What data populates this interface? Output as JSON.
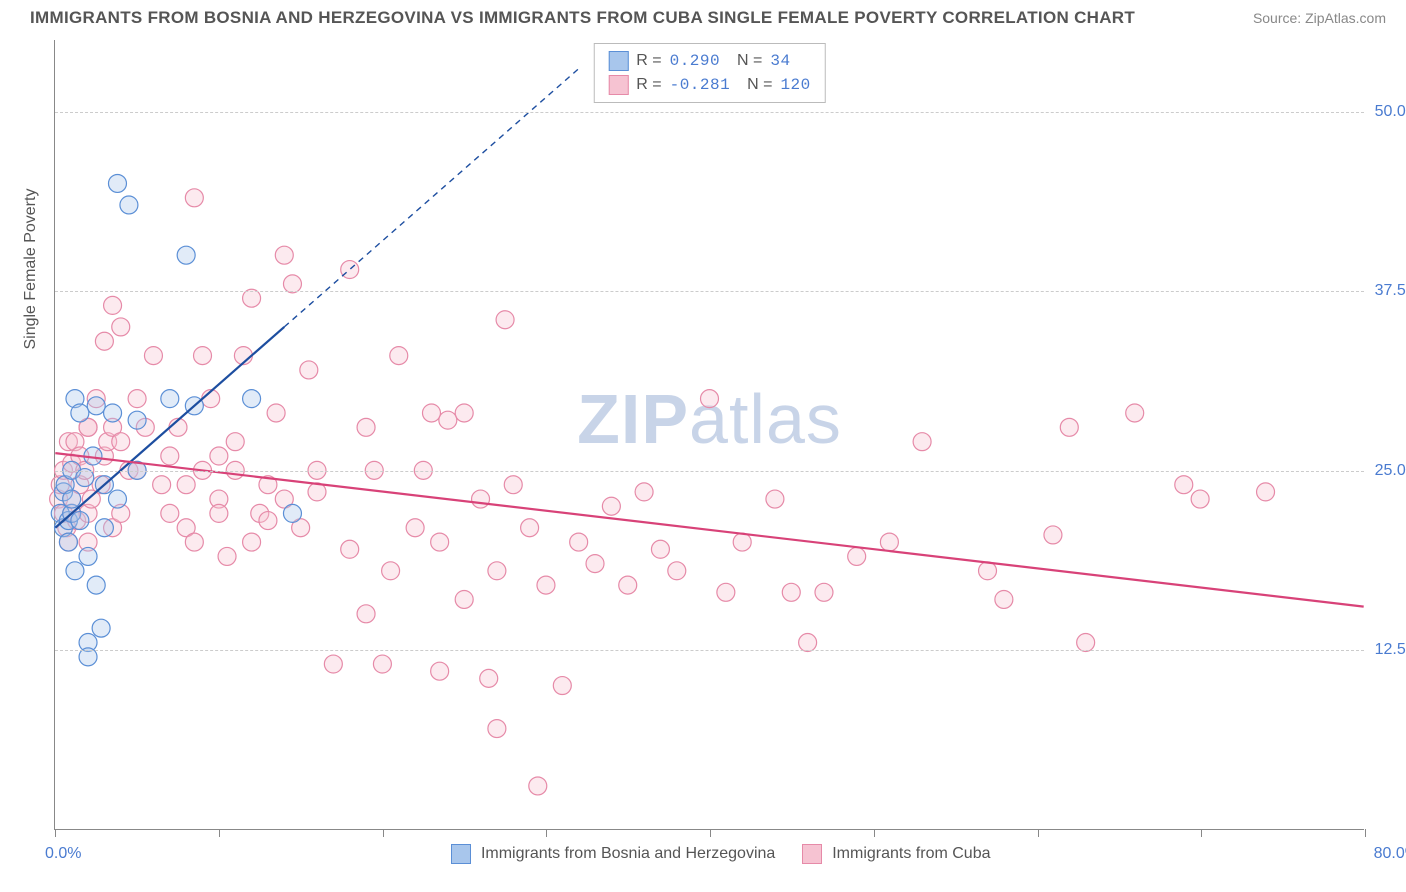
{
  "title": "IMMIGRANTS FROM BOSNIA AND HERZEGOVINA VS IMMIGRANTS FROM CUBA SINGLE FEMALE POVERTY CORRELATION CHART",
  "source": "Source: ZipAtlas.com",
  "watermark_bold": "ZIP",
  "watermark_light": "atlas",
  "yaxis_title": "Single Female Poverty",
  "chart": {
    "type": "scatter",
    "background_color": "#ffffff",
    "grid_color": "#cccccc",
    "grid_dash": "4,4",
    "axis_color": "#888888",
    "xlim": [
      0,
      80
    ],
    "ylim": [
      0,
      55
    ],
    "x_ticks": [
      0,
      10,
      20,
      30,
      40,
      50,
      60,
      70,
      80
    ],
    "x_tick_labels_visible": {
      "0": "0.0%",
      "80": "80.0%"
    },
    "y_ticks": [
      12.5,
      25.0,
      37.5,
      50.0
    ],
    "y_tick_labels": [
      "12.5%",
      "25.0%",
      "37.5%",
      "50.0%"
    ],
    "marker_radius": 9,
    "marker_fill_opacity": 0.35,
    "marker_stroke_width": 1.2,
    "line_width_solid": 2.2,
    "line_width_dash": 1.4
  },
  "series": [
    {
      "name": "Immigrants from Bosnia and Herzegovina",
      "color_fill": "#a8c6ec",
      "color_stroke": "#5b8fd6",
      "line_color": "#1d4ea0",
      "stats": {
        "R": "0.290",
        "N": "34"
      },
      "trend_solid": {
        "x1": 0,
        "y1": 21,
        "x2": 14,
        "y2": 35
      },
      "trend_dash": {
        "x1": 14,
        "y1": 35,
        "x2": 32,
        "y2": 53
      },
      "points": [
        [
          0.3,
          22
        ],
        [
          0.5,
          23.5
        ],
        [
          0.5,
          21
        ],
        [
          0.6,
          24
        ],
        [
          0.8,
          20
        ],
        [
          0.8,
          21.5
        ],
        [
          1,
          22
        ],
        [
          1,
          23
        ],
        [
          1,
          25
        ],
        [
          1.2,
          18
        ],
        [
          1.2,
          30
        ],
        [
          1.5,
          21.5
        ],
        [
          1.5,
          29
        ],
        [
          1.8,
          24.5
        ],
        [
          2,
          19
        ],
        [
          2,
          13
        ],
        [
          2,
          12
        ],
        [
          2.3,
          26
        ],
        [
          2.5,
          29.5
        ],
        [
          2.5,
          17
        ],
        [
          2.8,
          14
        ],
        [
          3,
          24
        ],
        [
          3,
          21
        ],
        [
          3.5,
          29
        ],
        [
          3.8,
          45
        ],
        [
          3.8,
          23
        ],
        [
          4.5,
          43.5
        ],
        [
          5,
          28.5
        ],
        [
          5,
          25
        ],
        [
          7,
          30
        ],
        [
          8,
          40
        ],
        [
          8.5,
          29.5
        ],
        [
          12,
          30
        ],
        [
          14.5,
          22
        ]
      ]
    },
    {
      "name": "Immigrants from Cuba",
      "color_fill": "#f6c3d2",
      "color_stroke": "#e68aa8",
      "line_color": "#d84278",
      "stats": {
        "R": "-0.281",
        "N": "120"
      },
      "trend_solid": {
        "x1": 0,
        "y1": 26.2,
        "x2": 80,
        "y2": 15.5
      },
      "trend_dash": null,
      "points": [
        [
          0.2,
          23
        ],
        [
          0.3,
          24
        ],
        [
          0.5,
          22
        ],
        [
          0.5,
          25
        ],
        [
          0.7,
          21
        ],
        [
          0.8,
          27
        ],
        [
          0.8,
          20
        ],
        [
          1,
          25.5
        ],
        [
          1,
          23
        ],
        [
          1,
          22
        ],
        [
          1.2,
          27
        ],
        [
          1.3,
          21.5
        ],
        [
          1.5,
          24
        ],
        [
          1.5,
          26
        ],
        [
          1.8,
          25
        ],
        [
          2,
          28
        ],
        [
          2,
          22
        ],
        [
          2,
          20
        ],
        [
          2.2,
          23
        ],
        [
          2.5,
          30
        ],
        [
          2.8,
          24
        ],
        [
          3,
          26
        ],
        [
          3.2,
          27
        ],
        [
          3.5,
          21
        ],
        [
          3.5,
          28
        ],
        [
          4,
          27
        ],
        [
          4,
          22
        ],
        [
          4.5,
          25
        ],
        [
          5,
          25
        ],
        [
          5.5,
          28
        ],
        [
          3,
          34
        ],
        [
          4,
          35
        ],
        [
          2,
          28
        ],
        [
          3.5,
          36.5
        ],
        [
          5,
          30
        ],
        [
          6,
          33
        ],
        [
          6.5,
          24
        ],
        [
          7,
          26
        ],
        [
          7,
          22
        ],
        [
          7.5,
          28
        ],
        [
          8,
          21
        ],
        [
          8,
          24
        ],
        [
          8.5,
          20
        ],
        [
          8.5,
          44
        ],
        [
          9,
          25
        ],
        [
          9,
          33
        ],
        [
          9.5,
          30
        ],
        [
          10,
          23
        ],
        [
          10,
          22
        ],
        [
          10,
          26
        ],
        [
          10.5,
          19
        ],
        [
          11,
          27
        ],
        [
          11,
          25
        ],
        [
          11.5,
          33
        ],
        [
          12,
          20
        ],
        [
          12,
          37
        ],
        [
          12.5,
          22
        ],
        [
          13,
          24
        ],
        [
          13,
          21.5
        ],
        [
          13.5,
          29
        ],
        [
          14,
          40
        ],
        [
          14,
          23
        ],
        [
          14.5,
          38
        ],
        [
          15,
          21
        ],
        [
          15.5,
          32
        ],
        [
          16,
          25
        ],
        [
          16,
          23.5
        ],
        [
          17,
          11.5
        ],
        [
          18,
          39
        ],
        [
          18,
          19.5
        ],
        [
          19,
          28
        ],
        [
          19,
          15
        ],
        [
          19.5,
          25
        ],
        [
          20,
          11.5
        ],
        [
          20.5,
          18
        ],
        [
          21,
          33
        ],
        [
          22,
          21
        ],
        [
          22.5,
          25
        ],
        [
          23,
          29
        ],
        [
          23.5,
          20
        ],
        [
          24,
          28.5
        ],
        [
          25,
          16
        ],
        [
          25,
          29
        ],
        [
          26,
          23
        ],
        [
          26.5,
          10.5
        ],
        [
          27,
          7
        ],
        [
          27,
          18
        ],
        [
          27.5,
          35.5
        ],
        [
          28,
          24
        ],
        [
          29,
          21
        ],
        [
          29.5,
          3
        ],
        [
          23.5,
          11
        ],
        [
          30,
          17
        ],
        [
          31,
          10
        ],
        [
          32,
          20
        ],
        [
          33,
          18.5
        ],
        [
          34,
          22.5
        ],
        [
          35,
          17
        ],
        [
          36,
          23.5
        ],
        [
          37,
          19.5
        ],
        [
          38,
          18
        ],
        [
          40,
          30
        ],
        [
          41,
          16.5
        ],
        [
          42,
          20
        ],
        [
          44,
          23
        ],
        [
          45,
          16.5
        ],
        [
          46,
          13
        ],
        [
          47,
          16.5
        ],
        [
          49,
          19
        ],
        [
          51,
          20
        ],
        [
          53,
          27
        ],
        [
          57,
          18
        ],
        [
          58,
          16
        ],
        [
          61,
          20.5
        ],
        [
          62,
          28
        ],
        [
          63,
          13
        ],
        [
          66,
          29
        ],
        [
          69,
          24
        ],
        [
          70,
          23
        ],
        [
          74,
          23.5
        ]
      ]
    }
  ],
  "legend": {
    "items": [
      {
        "label": "Immigrants from Bosnia and Herzegovina",
        "fill": "#a8c6ec",
        "stroke": "#5b8fd6"
      },
      {
        "label": "Immigrants from Cuba",
        "fill": "#f6c3d2",
        "stroke": "#e68aa8"
      }
    ]
  }
}
